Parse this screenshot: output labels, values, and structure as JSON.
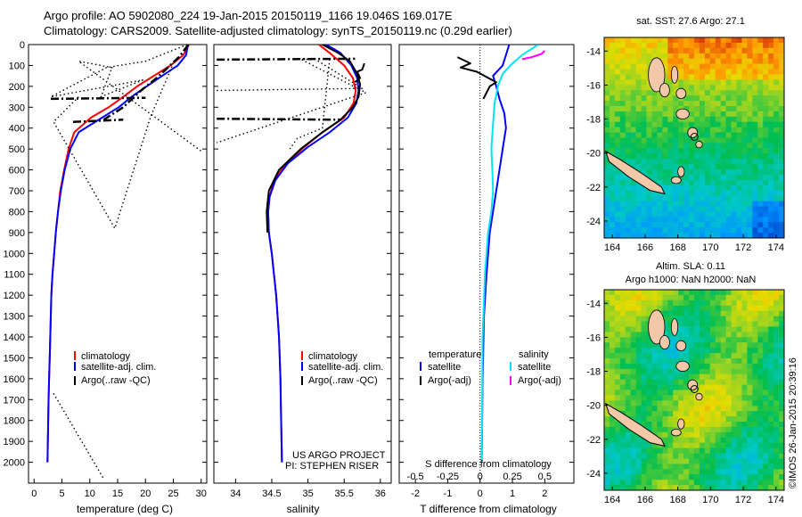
{
  "header": {
    "line1": "Argo profile: AO 5902080_224 19-Jan-2015 20150119_1166 19.046S 169.017E",
    "line2": "Climatology: CARS2009. Satellite-adjusted climatology: synTS_20150119.nc (0.29d earlier)"
  },
  "colors": {
    "climatology": "#ff0000",
    "satellite": "#0000ff",
    "argo": "#000000",
    "sal_satellite": "#00e5ee",
    "sal_argo": "#ff00ff"
  },
  "chart_data": [
    {
      "id": "temperature",
      "type": "line",
      "xlabel": "temperature (deg C)",
      "ylabel": "",
      "xlim": [
        -1,
        31
      ],
      "ylim": [
        0,
        2100
      ],
      "y_inverted": true,
      "xticks": [
        "0",
        "5",
        "10",
        "15",
        "20",
        "25",
        "30"
      ],
      "yticks": [
        "0",
        "100",
        "200",
        "300",
        "400",
        "500",
        "600",
        "700",
        "800",
        "900",
        "1000",
        "1100",
        "1200",
        "1300",
        "1400",
        "1500",
        "1600",
        "1700",
        "1800",
        "1900",
        "2000"
      ],
      "legend": [
        "climatology",
        "satellite-adj. clim.",
        "Argo(..raw -QC)"
      ],
      "series": [
        {
          "name": "climatology",
          "style": "solid",
          "color": "#ff0000",
          "x": [
            27.8,
            26.8,
            24.5,
            21.5,
            18.5,
            16.0,
            13.4,
            10.2,
            7.2,
            6.2,
            5.4,
            4.7,
            4.3,
            3.9,
            3.6,
            3.3,
            3.1,
            2.9,
            2.8,
            2.7,
            2.6,
            2.5,
            2.4
          ],
          "y": [
            0,
            50,
            100,
            150,
            200,
            250,
            300,
            350,
            420,
            500,
            600,
            700,
            800,
            900,
            1000,
            1100,
            1200,
            1400,
            1500,
            1600,
            1700,
            1850,
            2000
          ]
        },
        {
          "name": "satellite-adj. clim.",
          "style": "solid",
          "color": "#0000ff",
          "x": [
            27.6,
            27.3,
            25.8,
            23.0,
            20.2,
            17.5,
            15.2,
            12.2,
            8.0,
            6.5,
            5.5,
            4.8,
            4.3,
            3.9,
            3.6,
            3.3,
            3.1,
            2.9,
            2.8,
            2.7,
            2.6,
            2.5,
            2.4
          ],
          "y": [
            0,
            50,
            100,
            150,
            200,
            250,
            300,
            350,
            420,
            500,
            600,
            700,
            800,
            900,
            1000,
            1100,
            1200,
            1400,
            1500,
            1600,
            1700,
            1850,
            2000
          ]
        },
        {
          "name": "Argo(..raw -QC)",
          "style": "dashdot",
          "color": "#000000",
          "x": [
            27.7,
            27.0,
            26.0,
            24.0,
            22.0,
            19.2,
            16.0,
            12.5
          ],
          "y": [
            0,
            25,
            60,
            110,
            160,
            220,
            300,
            360
          ]
        },
        {
          "name": "Argo connector 1",
          "style": "dashdot",
          "color": "#000000",
          "x": [
            3.0,
            20.0
          ],
          "y": [
            260,
            255
          ]
        },
        {
          "name": "Argo connector 2",
          "style": "dashdot",
          "color": "#000000",
          "x": [
            7.0,
            16.0
          ],
          "y": [
            370,
            360
          ]
        },
        {
          "name": "Argo dotted 1",
          "style": "dotted",
          "color": "#000000",
          "x": [
            27.5,
            20.0,
            13.0,
            3.0,
            19.5,
            12.0,
            14.0,
            8.0,
            30.0
          ],
          "y": [
            0,
            80,
            110,
            250,
            170,
            250,
            110,
            80,
            510
          ]
        },
        {
          "name": "Argo dotted 2",
          "style": "dotted",
          "color": "#000000",
          "x": [
            8.0,
            3.5,
            14.5,
            21.0,
            25.0
          ],
          "y": [
            250,
            370,
            880,
            340,
            90
          ]
        },
        {
          "name": "Argo dotted 3",
          "style": "dotted",
          "color": "#000000",
          "x": [
            3.5,
            12.5
          ],
          "y": [
            1670,
            2080
          ]
        }
      ]
    },
    {
      "id": "salinity",
      "type": "line",
      "xlabel": "salinity",
      "ylabel": "",
      "xlim": [
        33.7,
        36.15
      ],
      "ylim": [
        0,
        2100
      ],
      "y_inverted": true,
      "xticks": [
        "34",
        "34.5",
        "35",
        "35.5",
        "36"
      ],
      "legend": [
        "climatology",
        "satellite-adj. clim.",
        "Argo(..raw -QC)"
      ],
      "annotations": [
        "US ARGO PROJECT",
        "PI: STEPHEN RISER"
      ],
      "series": [
        {
          "name": "climatology",
          "style": "solid",
          "color": "#ff0000",
          "x": [
            35.15,
            35.3,
            35.5,
            35.62,
            35.66,
            35.63,
            35.5,
            35.2,
            34.95,
            34.7,
            34.53,
            34.47,
            34.45,
            34.46,
            34.5,
            34.56,
            34.6,
            34.62,
            34.63,
            34.64
          ],
          "y": [
            0,
            40,
            100,
            160,
            220,
            280,
            350,
            420,
            490,
            570,
            650,
            730,
            800,
            900,
            1000,
            1200,
            1400,
            1600,
            1800,
            2000
          ]
        },
        {
          "name": "satellite-adj. clim.",
          "style": "solid",
          "color": "#0000ff",
          "x": [
            35.25,
            35.45,
            35.6,
            35.68,
            35.7,
            35.67,
            35.55,
            35.3,
            35.0,
            34.72,
            34.55,
            34.47,
            34.45,
            34.46,
            34.5,
            34.56,
            34.6,
            34.62,
            34.63,
            34.64
          ],
          "y": [
            0,
            40,
            100,
            160,
            220,
            280,
            350,
            420,
            490,
            570,
            650,
            730,
            800,
            900,
            1000,
            1200,
            1400,
            1600,
            1800,
            2000
          ]
        },
        {
          "name": "Argo(..raw -QC)",
          "style": "solid",
          "color": "#000000",
          "x": [
            35.2,
            35.42,
            35.58,
            35.68,
            35.72,
            35.7,
            35.62,
            35.45,
            35.2,
            34.9,
            34.6,
            34.46,
            34.43,
            34.44
          ],
          "y": [
            0,
            40,
            80,
            140,
            190,
            250,
            300,
            360,
            420,
            500,
            600,
            700,
            800,
            900
          ]
        },
        {
          "name": "Argo wiggle",
          "style": "solid",
          "color": "#000000",
          "x": [
            35.65,
            35.72,
            35.68,
            35.75,
            35.78
          ],
          "y": [
            180,
            160,
            130,
            120,
            90
          ]
        },
        {
          "name": "Argo dashdot 1",
          "style": "dashdot",
          "color": "#000000",
          "x": [
            33.74,
            35.65
          ],
          "y": [
            72,
            68
          ]
        },
        {
          "name": "Argo dashdot 2",
          "style": "dashdot",
          "color": "#000000",
          "x": [
            33.74,
            35.45
          ],
          "y": [
            355,
            360
          ]
        },
        {
          "name": "Argo dotted 1",
          "style": "dotted",
          "color": "#000000",
          "x": [
            33.74,
            35.75,
            35.1,
            34.9,
            35.8,
            33.74
          ],
          "y": [
            220,
            210,
            70,
            70,
            230,
            470
          ]
        },
        {
          "name": "Argo dotted 2",
          "style": "dotted",
          "color": "#000000",
          "x": [
            35.3,
            35.2,
            34.85,
            34.75
          ],
          "y": [
            70,
            400,
            450,
            500
          ]
        }
      ]
    },
    {
      "id": "difference",
      "type": "line",
      "xlabel": "T difference from climatology",
      "title_bottom": "S difference from climatology",
      "xlim": [
        -2.5,
        2.9
      ],
      "ylim": [
        0,
        2100
      ],
      "y_inverted": true,
      "xticks": [
        "-2",
        "-1",
        "0",
        "1",
        "2"
      ],
      "xticks_top": [
        "-0.5",
        "-0.25",
        "0",
        "0.25",
        "0.5"
      ],
      "legend_temperature_title": "temperature",
      "legend_salinity_title": "salinity",
      "legend_temperature": [
        "satellite",
        "Argo(-adj)"
      ],
      "legend_salinity": [
        "satellite",
        "Argo(-adj)"
      ],
      "series": [
        {
          "name": "temperature satellite",
          "style": "solid",
          "color": "#0000ff",
          "x": [
            0.9,
            0.8,
            0.7,
            0.4,
            0.5,
            0.6,
            0.75,
            0.8,
            0.7,
            0.6,
            0.5,
            0.4,
            0.3,
            0.2,
            0.12,
            0.08,
            0.05
          ],
          "y": [
            0,
            50,
            100,
            150,
            200,
            260,
            330,
            400,
            500,
            600,
            700,
            800,
            900,
            1100,
            1300,
            1600,
            2000
          ]
        },
        {
          "name": "temperature Argo(-adj)",
          "style": "solid",
          "color": "#000000",
          "x": [
            -0.7,
            -0.3,
            -0.6,
            -0.1,
            0.5,
            0.3,
            0.2,
            0.1
          ],
          "y": [
            60,
            90,
            110,
            130,
            180,
            200,
            230,
            260
          ]
        },
        {
          "name": "salinity satellite",
          "style": "solid",
          "color": "#00e5ee",
          "x": [
            1.8,
            1.6,
            1.3,
            1.0,
            0.7,
            0.55,
            0.45,
            0.4,
            0.35,
            0.38,
            0.4,
            0.35,
            0.25,
            0.15,
            0.08,
            0.05
          ],
          "y": [
            0,
            20,
            50,
            90,
            140,
            200,
            280,
            380,
            500,
            600,
            700,
            800,
            900,
            1100,
            1400,
            2000
          ]
        },
        {
          "name": "salinity Argo(-adj)",
          "style": "solid",
          "color": "#ff00ff",
          "x": [
            1.3,
            1.6,
            1.9,
            2.0
          ],
          "y": [
            70,
            60,
            45,
            30
          ]
        }
      ]
    }
  ],
  "sst_map": {
    "title": "sat. SST: 27.6  Argo: 27.1",
    "xticks": [
      "164",
      "166",
      "168",
      "170",
      "172",
      "174"
    ],
    "yticks": [
      "-14",
      "-16",
      "-18",
      "-20",
      "-22",
      "-24"
    ],
    "lon_range": [
      163.5,
      174.5
    ],
    "lat_range": [
      -25,
      -13.2
    ]
  },
  "sla_map": {
    "title1": "Altim. SLA: 0.11",
    "title2": "Argo h1000: NaN h2000: NaN",
    "xticks": [
      "164",
      "166",
      "168",
      "170",
      "172",
      "174"
    ],
    "yticks": [
      "-14",
      "-16",
      "-18",
      "-20",
      "-22",
      "-24"
    ],
    "lon_range": [
      163.5,
      174.5
    ],
    "lat_range": [
      -25,
      -13.2
    ]
  },
  "stamp": "©IMOS 26-Jan-2015 20:39:16"
}
